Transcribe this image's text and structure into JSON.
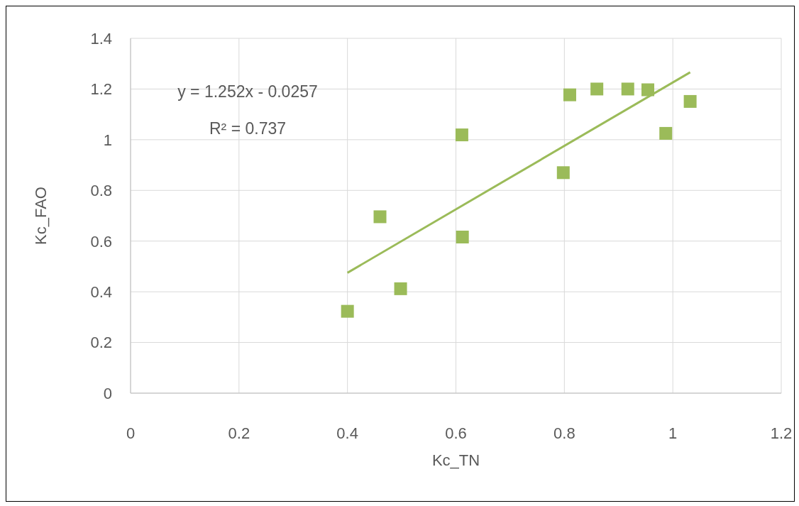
{
  "chart_data": {
    "type": "scatter",
    "xlabel": "Kc_TN",
    "ylabel": "Kc_FAO",
    "annotations": [
      "y = 1.252x - 0.0257",
      "R² = 0.737"
    ],
    "series": [
      {
        "type": "scatter",
        "color": "#9bbb59",
        "marker": "square",
        "x": [
          0.4,
          0.46,
          0.498,
          0.611,
          0.612,
          0.798,
          0.81,
          0.86,
          0.917,
          0.954,
          0.987,
          1.032
        ],
        "values": [
          0.323,
          0.696,
          0.412,
          1.019,
          0.616,
          0.87,
          1.177,
          1.2,
          1.2,
          1.197,
          1.025,
          1.151
        ]
      },
      {
        "type": "line",
        "color": "#9bbb59",
        "marker": "none",
        "x": [
          0.4,
          1.032
        ],
        "values": [
          0.475,
          1.266
        ]
      }
    ],
    "xlim": [
      0,
      1.2
    ],
    "xticks": [
      0,
      0.2,
      0.4,
      0.6,
      0.8,
      1,
      1.2
    ],
    "ylim": [
      0,
      1.4
    ],
    "yticks": [
      0,
      0.2,
      0.4,
      0.6,
      0.8,
      1,
      1.2,
      1.4
    ],
    "grid": true,
    "legend": false
  }
}
